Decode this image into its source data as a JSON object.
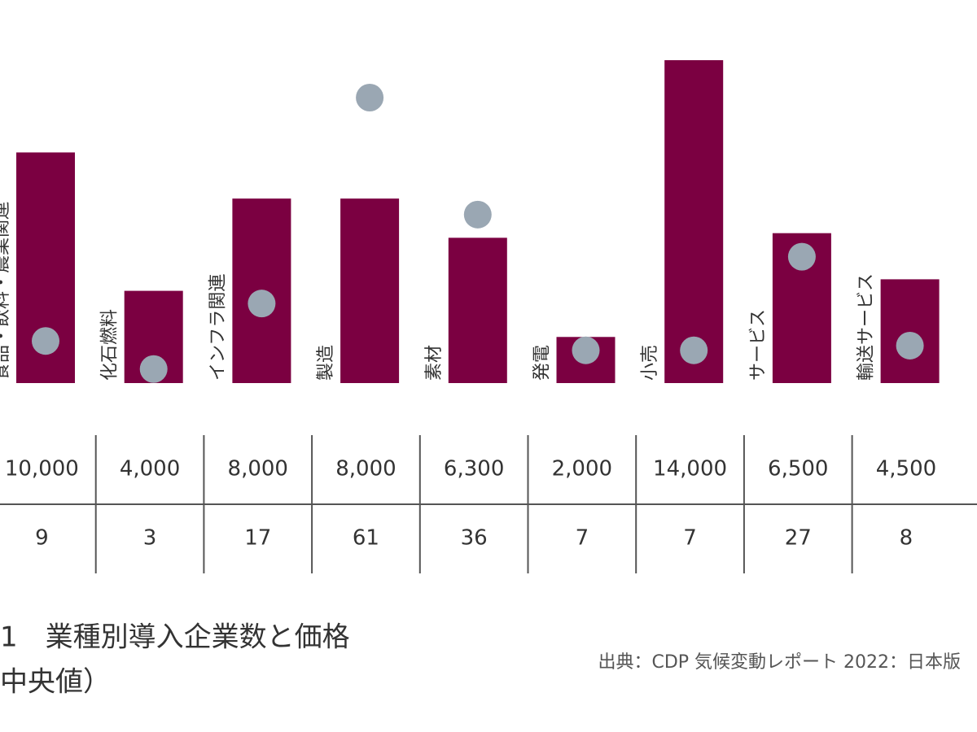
{
  "chart_data": {
    "type": "bar",
    "categories": [
      "食品・飲料・農業関連",
      "化石燃料",
      "インフラ関連",
      "製造",
      "素材",
      "発電",
      "小売",
      "サービス",
      "輸送サービス"
    ],
    "series": [
      {
        "color": "#7b0041",
        "values": [
          10000,
          4000,
          8000,
          8000,
          6300,
          2000,
          14000,
          6500,
          4500
        ],
        "value_labels": [
          "10,000",
          "4,000",
          "8,000",
          "8,000",
          "6,300",
          "2,000",
          "14,000",
          "6,500",
          "4,500"
        ]
      },
      {
        "type": "scatter",
        "axis": "y2",
        "color": "#9aa7b3",
        "values": [
          9,
          3,
          17,
          61,
          36,
          7,
          7,
          27,
          8
        ]
      }
    ],
    "ylim": [
      0,
      14000
    ],
    "y2lim": [
      0,
      61
    ],
    "title": [
      "1　業種別導入企業数と価格",
      "中央値）"
    ],
    "source": "出典：CDP 気候変動レポート 2022：日本版"
  }
}
